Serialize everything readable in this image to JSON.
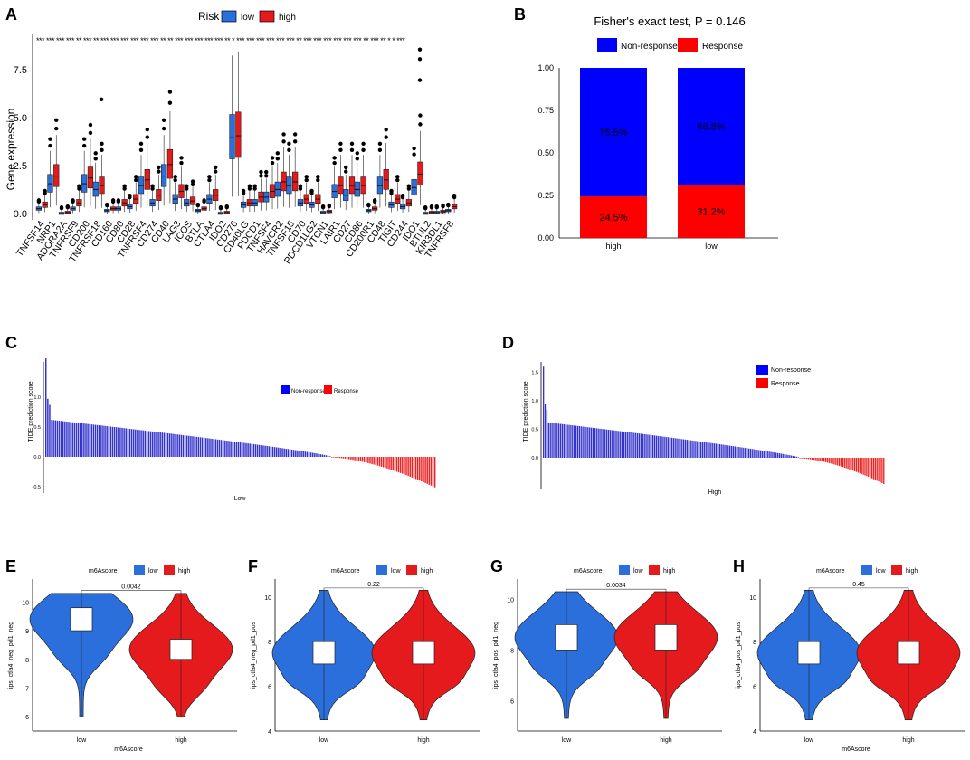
{
  "colors": {
    "low": "#2a6fdb",
    "high": "#e41a1c",
    "nonresp": "#0000ff",
    "resp": "#ff0000",
    "bar_blue": "#3333cc",
    "bar_red": "#ee2222"
  },
  "panel_a": {
    "letter": "A",
    "legend_title": "Risk",
    "legend": [
      "low",
      "high"
    ],
    "ylabel": "Gene expression",
    "yticks": [
      "0.0",
      "2.5",
      "5.0",
      "7.5"
    ],
    "stars_text": "*** *** *** *** **  *** **  ***  ***  *** *** *** *** ** ** *** *** *** *** *** **  * *** *** *** *** *** *** ** *** *** *** *** *** *** **  *** ** *  *  ***"
  },
  "panel_b": {
    "letter": "B",
    "title": "Fisher's exact test, P = 0.146",
    "legend": [
      "Non-response",
      "Response"
    ],
    "yticks": [
      "0.00",
      "0.25",
      "0.50",
      "0.75",
      "1.00"
    ]
  },
  "panel_c": {
    "letter": "C",
    "ylabel": "TIDE prediction score",
    "xlabel": "Low",
    "legend": [
      "Non-response",
      "Response"
    ],
    "yticks": [
      "-0.5",
      "0.0",
      "0.5",
      "1.0"
    ]
  },
  "panel_d": {
    "letter": "D",
    "ylabel": "TIDE prediction score",
    "xlabel": "High",
    "legend": [
      "Non-response",
      "Response"
    ],
    "yticks": [
      "0.0",
      "0.5",
      "1.0",
      "1.5"
    ]
  },
  "chart_data": [
    {
      "type": "box",
      "id": "A",
      "ylim": [
        -0.3,
        9.0
      ],
      "categories": [
        "TNFSF14",
        "NRP1",
        "ADORA2A",
        "TNFRSF9",
        "CD200",
        "TNFRSF18",
        "CD160",
        "CD80",
        "CD28",
        "TNFRSF4",
        "CD274",
        "CD40",
        "LAG3",
        "ICOS",
        "BTLA",
        "CTLA4",
        "IDO2",
        "CD276",
        "CD40LG",
        "PDCD1",
        "TNFSF4",
        "HAVCR2",
        "TNFSF15",
        "CD70",
        "PDCD1LG2",
        "VTCN1",
        "LAIR1",
        "CD27",
        "CD86",
        "CD200R1",
        "CD48",
        "TIGIT",
        "CD244",
        "IDO1",
        "BTNL2",
        "KIR3DL1",
        "TNFRSF8"
      ],
      "series": [
        {
          "name": "low",
          "median": [
            0.3,
            1.6,
            0.05,
            0.3,
            1.6,
            1.3,
            0.2,
            0.3,
            0.4,
            1.5,
            0.6,
            2.0,
            0.8,
            0.6,
            0.2,
            0.8,
            0.05,
            4.0,
            0.5,
            0.6,
            0.9,
            1.3,
            1.5,
            0.6,
            0.5,
            0.1,
            1.2,
            1.0,
            1.3,
            0.2,
            1.5,
            0.5,
            0.4,
            1.4,
            0.05,
            0.1,
            0.2
          ]
        },
        {
          "name": "high",
          "median": [
            0.5,
            2.0,
            0.1,
            0.6,
            1.9,
            1.5,
            0.3,
            0.6,
            0.8,
            1.8,
            1.0,
            2.6,
            1.2,
            0.7,
            0.3,
            1.0,
            0.1,
            4.1,
            0.6,
            0.9,
            1.2,
            1.7,
            1.7,
            0.8,
            0.8,
            0.15,
            1.5,
            1.5,
            1.5,
            0.3,
            1.8,
            0.8,
            0.6,
            2.1,
            0.1,
            0.15,
            0.4
          ]
        }
      ]
    },
    {
      "type": "stacked_bar",
      "id": "B",
      "categories": [
        "high",
        "low"
      ],
      "series": [
        {
          "name": "Response",
          "values": [
            0.245,
            0.312
          ],
          "labels": [
            "24.5%",
            "31.2%"
          ]
        },
        {
          "name": "Non-response",
          "values": [
            0.755,
            0.688
          ],
          "labels": [
            "75.5%",
            "68.8%"
          ]
        }
      ],
      "ylim": [
        0,
        1
      ]
    },
    {
      "type": "waterfall_bar",
      "id": "C",
      "ylim": [
        -0.6,
        1.7
      ],
      "n_nonresponse": 150,
      "n_response": 55,
      "max": 1.65,
      "min": -0.5
    },
    {
      "type": "waterfall_bar",
      "id": "D",
      "ylim": [
        -0.5,
        1.7
      ],
      "n_nonresponse": 150,
      "n_response": 50,
      "max": 1.6,
      "min": -0.45
    },
    {
      "type": "violin",
      "id": "E",
      "letter": "E",
      "legend_title": "m6Ascore",
      "legend": [
        "low",
        "high"
      ],
      "ylabel": "ips_ctla4_neg_pd1_neg",
      "xlabel": "m6Ascore",
      "categories": [
        "low",
        "high"
      ],
      "p": "0.0042",
      "ylim": [
        5.5,
        10.8
      ],
      "yticks": [
        "6",
        "7",
        "8",
        "9",
        "10"
      ],
      "box": [
        {
          "q1": 9.0,
          "q3": 9.8
        },
        {
          "q1": 8.0,
          "q3": 8.7
        }
      ]
    },
    {
      "type": "violin",
      "id": "F",
      "letter": "F",
      "legend_title": "m6Ascore",
      "legend": [
        "low",
        "high"
      ],
      "ylabel": "ips_ctla4_neg_pd1_pos",
      "xlabel": "",
      "categories": [
        "low",
        "high"
      ],
      "p": "0.22",
      "ylim": [
        4,
        10.8
      ],
      "yticks": [
        "4",
        "6",
        "8",
        "10"
      ],
      "box": [
        {
          "q1": 7.0,
          "q3": 8.0
        },
        {
          "q1": 7.0,
          "q3": 8.0
        }
      ]
    },
    {
      "type": "violin",
      "id": "G",
      "letter": "G",
      "legend_title": "m6Ascore",
      "legend": [
        "low",
        "high"
      ],
      "ylabel": "ips_ctla4_pos_pd1_neg",
      "xlabel": "",
      "categories": [
        "low",
        "high"
      ],
      "p": "0.0034",
      "ylim": [
        4.8,
        10.8
      ],
      "yticks": [
        "6",
        "8",
        "10"
      ],
      "box": [
        {
          "q1": 8.0,
          "q3": 9.0
        },
        {
          "q1": 8.0,
          "q3": 9.0
        }
      ]
    },
    {
      "type": "violin",
      "id": "H",
      "letter": "H",
      "legend_title": "m6Ascore",
      "legend": [
        "low",
        "high"
      ],
      "ylabel": "ips_ctla4_pos_pd1_pos",
      "xlabel": "m6Ascore",
      "categories": [
        "low",
        "high"
      ],
      "p": "0.45",
      "ylim": [
        4,
        10.8
      ],
      "yticks": [
        "4",
        "6",
        "8",
        "10"
      ],
      "box": [
        {
          "q1": 7.0,
          "q3": 8.0
        },
        {
          "q1": 7.0,
          "q3": 8.0
        }
      ]
    }
  ]
}
